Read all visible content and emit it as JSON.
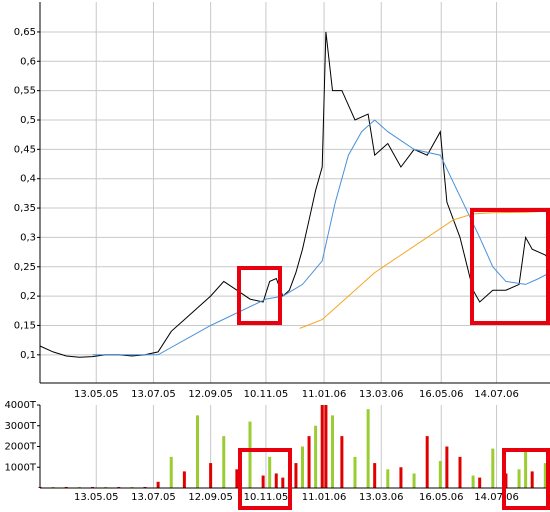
{
  "chart_data": [
    {
      "type": "line",
      "xlim": [
        "14.03.05",
        "09.09.06"
      ],
      "xticks": [
        "13.05.05",
        "13.07.05",
        "12.09.05",
        "10.11.05",
        "11.01.06",
        "13.03.06",
        "16.05.06",
        "14.07.06"
      ],
      "ylim": [
        0.052,
        0.701
      ],
      "yticks": [
        {
          "value": 0.1,
          "label": "0,1"
        },
        {
          "value": 0.15,
          "label": "0,15"
        },
        {
          "value": 0.2,
          "label": "0,2"
        },
        {
          "value": 0.25,
          "label": "0,25"
        },
        {
          "value": 0.3,
          "label": "0,3"
        },
        {
          "value": 0.35,
          "label": "0,35"
        },
        {
          "value": 0.4,
          "label": "0,4"
        },
        {
          "value": 0.45,
          "label": "0,45"
        },
        {
          "value": 0.5,
          "label": "0,5"
        },
        {
          "value": 0.55,
          "label": "0,55"
        },
        {
          "value": 0.6,
          "label": "0,6"
        },
        {
          "value": 0.65,
          "label": "0,65"
        }
      ],
      "grid": true,
      "series": [
        {
          "color": "#000000",
          "x": [
            "14.03.05",
            "28.03.05",
            "11.04.05",
            "25.04.05",
            "09.05.05",
            "23.05.05",
            "06.06.05",
            "20.06.05",
            "04.07.05",
            "18.07.05",
            "01.08.05",
            "15.08.05",
            "29.08.05",
            "12.09.05",
            "26.09.05",
            "10.10.05",
            "24.10.05",
            "07.11.05",
            "14.11.05",
            "21.11.05",
            "28.11.05",
            "05.12.05",
            "12.12.05",
            "19.12.05",
            "26.12.05",
            "02.01.06",
            "09.01.06",
            "13.01.06",
            "20.01.06",
            "30.01.06",
            "13.02.06",
            "27.02.06",
            "06.03.06",
            "20.03.06",
            "03.04.06",
            "17.04.06",
            "01.05.06",
            "15.05.06",
            "22.05.06",
            "05.06.06",
            "19.06.06",
            "26.06.06",
            "10.07.06",
            "24.07.06",
            "07.08.06",
            "14.08.06",
            "21.08.06",
            "04.09.06",
            "09.09.06"
          ],
          "values": [
            0.115,
            0.105,
            0.098,
            0.096,
            0.097,
            0.1,
            0.1,
            0.098,
            0.1,
            0.105,
            0.14,
            0.16,
            0.18,
            0.2,
            0.225,
            0.21,
            0.195,
            0.19,
            0.225,
            0.23,
            0.2,
            0.21,
            0.24,
            0.28,
            0.33,
            0.38,
            0.42,
            0.65,
            0.55,
            0.55,
            0.5,
            0.51,
            0.44,
            0.46,
            0.42,
            0.45,
            0.44,
            0.48,
            0.36,
            0.3,
            0.21,
            0.19,
            0.21,
            0.21,
            0.22,
            0.3,
            0.28,
            0.27,
            0.26
          ]
        },
        {
          "color": "#4a90d9",
          "x": [
            "09.05.05",
            "18.07.05",
            "12.09.05",
            "10.11.05",
            "28.11.05",
            "19.12.05",
            "09.01.06",
            "23.01.06",
            "06.02.06",
            "20.02.06",
            "06.03.06",
            "20.03.06",
            "17.04.06",
            "15.05.06",
            "05.06.06",
            "26.06.06",
            "10.07.06",
            "24.07.06",
            "14.08.06",
            "28.08.06",
            "09.09.06"
          ],
          "values": [
            0.1,
            0.1,
            0.15,
            0.195,
            0.2,
            0.22,
            0.26,
            0.36,
            0.44,
            0.48,
            0.5,
            0.48,
            0.45,
            0.44,
            0.37,
            0.3,
            0.25,
            0.225,
            0.22,
            0.23,
            0.24
          ]
        },
        {
          "color": "#f5a623",
          "x": [
            "16.12.05",
            "09.01.06",
            "06.02.06",
            "06.03.06",
            "03.04.06",
            "01.05.06",
            "29.05.06",
            "19.06.06",
            "10.07.06",
            "14.08.06",
            "09.09.06"
          ],
          "values": [
            0.145,
            0.16,
            0.2,
            0.24,
            0.27,
            0.3,
            0.33,
            0.34,
            0.342,
            0.343,
            0.345
          ]
        }
      ]
    },
    {
      "type": "bar",
      "xlim": [
        "14.03.05",
        "09.09.06"
      ],
      "xticks": [
        "13.05.05",
        "13.07.05",
        "12.09.05",
        "10.11.05",
        "11.01.06",
        "13.03.06",
        "16.05.06",
        "14.07.06"
      ],
      "ylim": [
        0,
        4000
      ],
      "yticks": [
        {
          "value": 1000,
          "label": "1000T"
        },
        {
          "value": 2000,
          "label": "2000T"
        },
        {
          "value": 3000,
          "label": "3000T"
        },
        {
          "value": 4000,
          "label": "4000T"
        }
      ],
      "grid": true,
      "x": [
        "14.03.05",
        "28.03.05",
        "11.04.05",
        "25.04.05",
        "09.05.05",
        "23.05.05",
        "06.06.05",
        "20.06.05",
        "04.07.05",
        "18.07.05",
        "01.08.05",
        "15.08.05",
        "29.08.05",
        "12.09.05",
        "26.09.05",
        "10.10.05",
        "24.10.05",
        "07.11.05",
        "14.11.05",
        "21.11.05",
        "28.11.05",
        "05.12.05",
        "12.12.05",
        "19.12.05",
        "26.12.05",
        "02.01.06",
        "09.01.06",
        "13.01.06",
        "20.01.06",
        "30.01.06",
        "13.02.06",
        "27.02.06",
        "06.03.06",
        "20.03.06",
        "03.04.06",
        "17.04.06",
        "01.05.06",
        "15.05.06",
        "22.05.06",
        "05.06.06",
        "19.06.06",
        "26.06.06",
        "10.07.06",
        "24.07.06",
        "07.08.06",
        "14.08.06",
        "21.08.06",
        "04.09.06",
        "09.09.06"
      ],
      "values": [
        50,
        50,
        50,
        50,
        50,
        50,
        50,
        50,
        50,
        300,
        1500,
        800,
        3500,
        1200,
        2500,
        900,
        3200,
        600,
        1500,
        700,
        500,
        800,
        1200,
        2000,
        2500,
        3000,
        4000,
        4000,
        3500,
        2500,
        1500,
        3800,
        1200,
        900,
        1000,
        700,
        2500,
        1300,
        2000,
        1500,
        600,
        500,
        1900,
        700,
        900,
        1900,
        800,
        1200,
        600
      ],
      "colors": [
        "#e00000",
        "#9acd32",
        "#e00000",
        "#9acd32",
        "#e00000",
        "#9acd32",
        "#e00000",
        "#9acd32",
        "#e00000",
        "#e00000",
        "#9acd32",
        "#e00000",
        "#9acd32",
        "#e00000",
        "#9acd32",
        "#e00000",
        "#9acd32",
        "#e00000",
        "#9acd32",
        "#e00000",
        "#e00000",
        "#9acd32",
        "#e00000",
        "#9acd32",
        "#e00000",
        "#9acd32",
        "#e00000",
        "#e00000",
        "#9acd32",
        "#e00000",
        "#9acd32",
        "#9acd32",
        "#e00000",
        "#9acd32",
        "#e00000",
        "#9acd32",
        "#e00000",
        "#9acd32",
        "#e00000",
        "#e00000",
        "#9acd32",
        "#e00000",
        "#9acd32",
        "#e00000",
        "#9acd32",
        "#9acd32",
        "#e00000",
        "#9acd32",
        "#e00000"
      ]
    }
  ]
}
